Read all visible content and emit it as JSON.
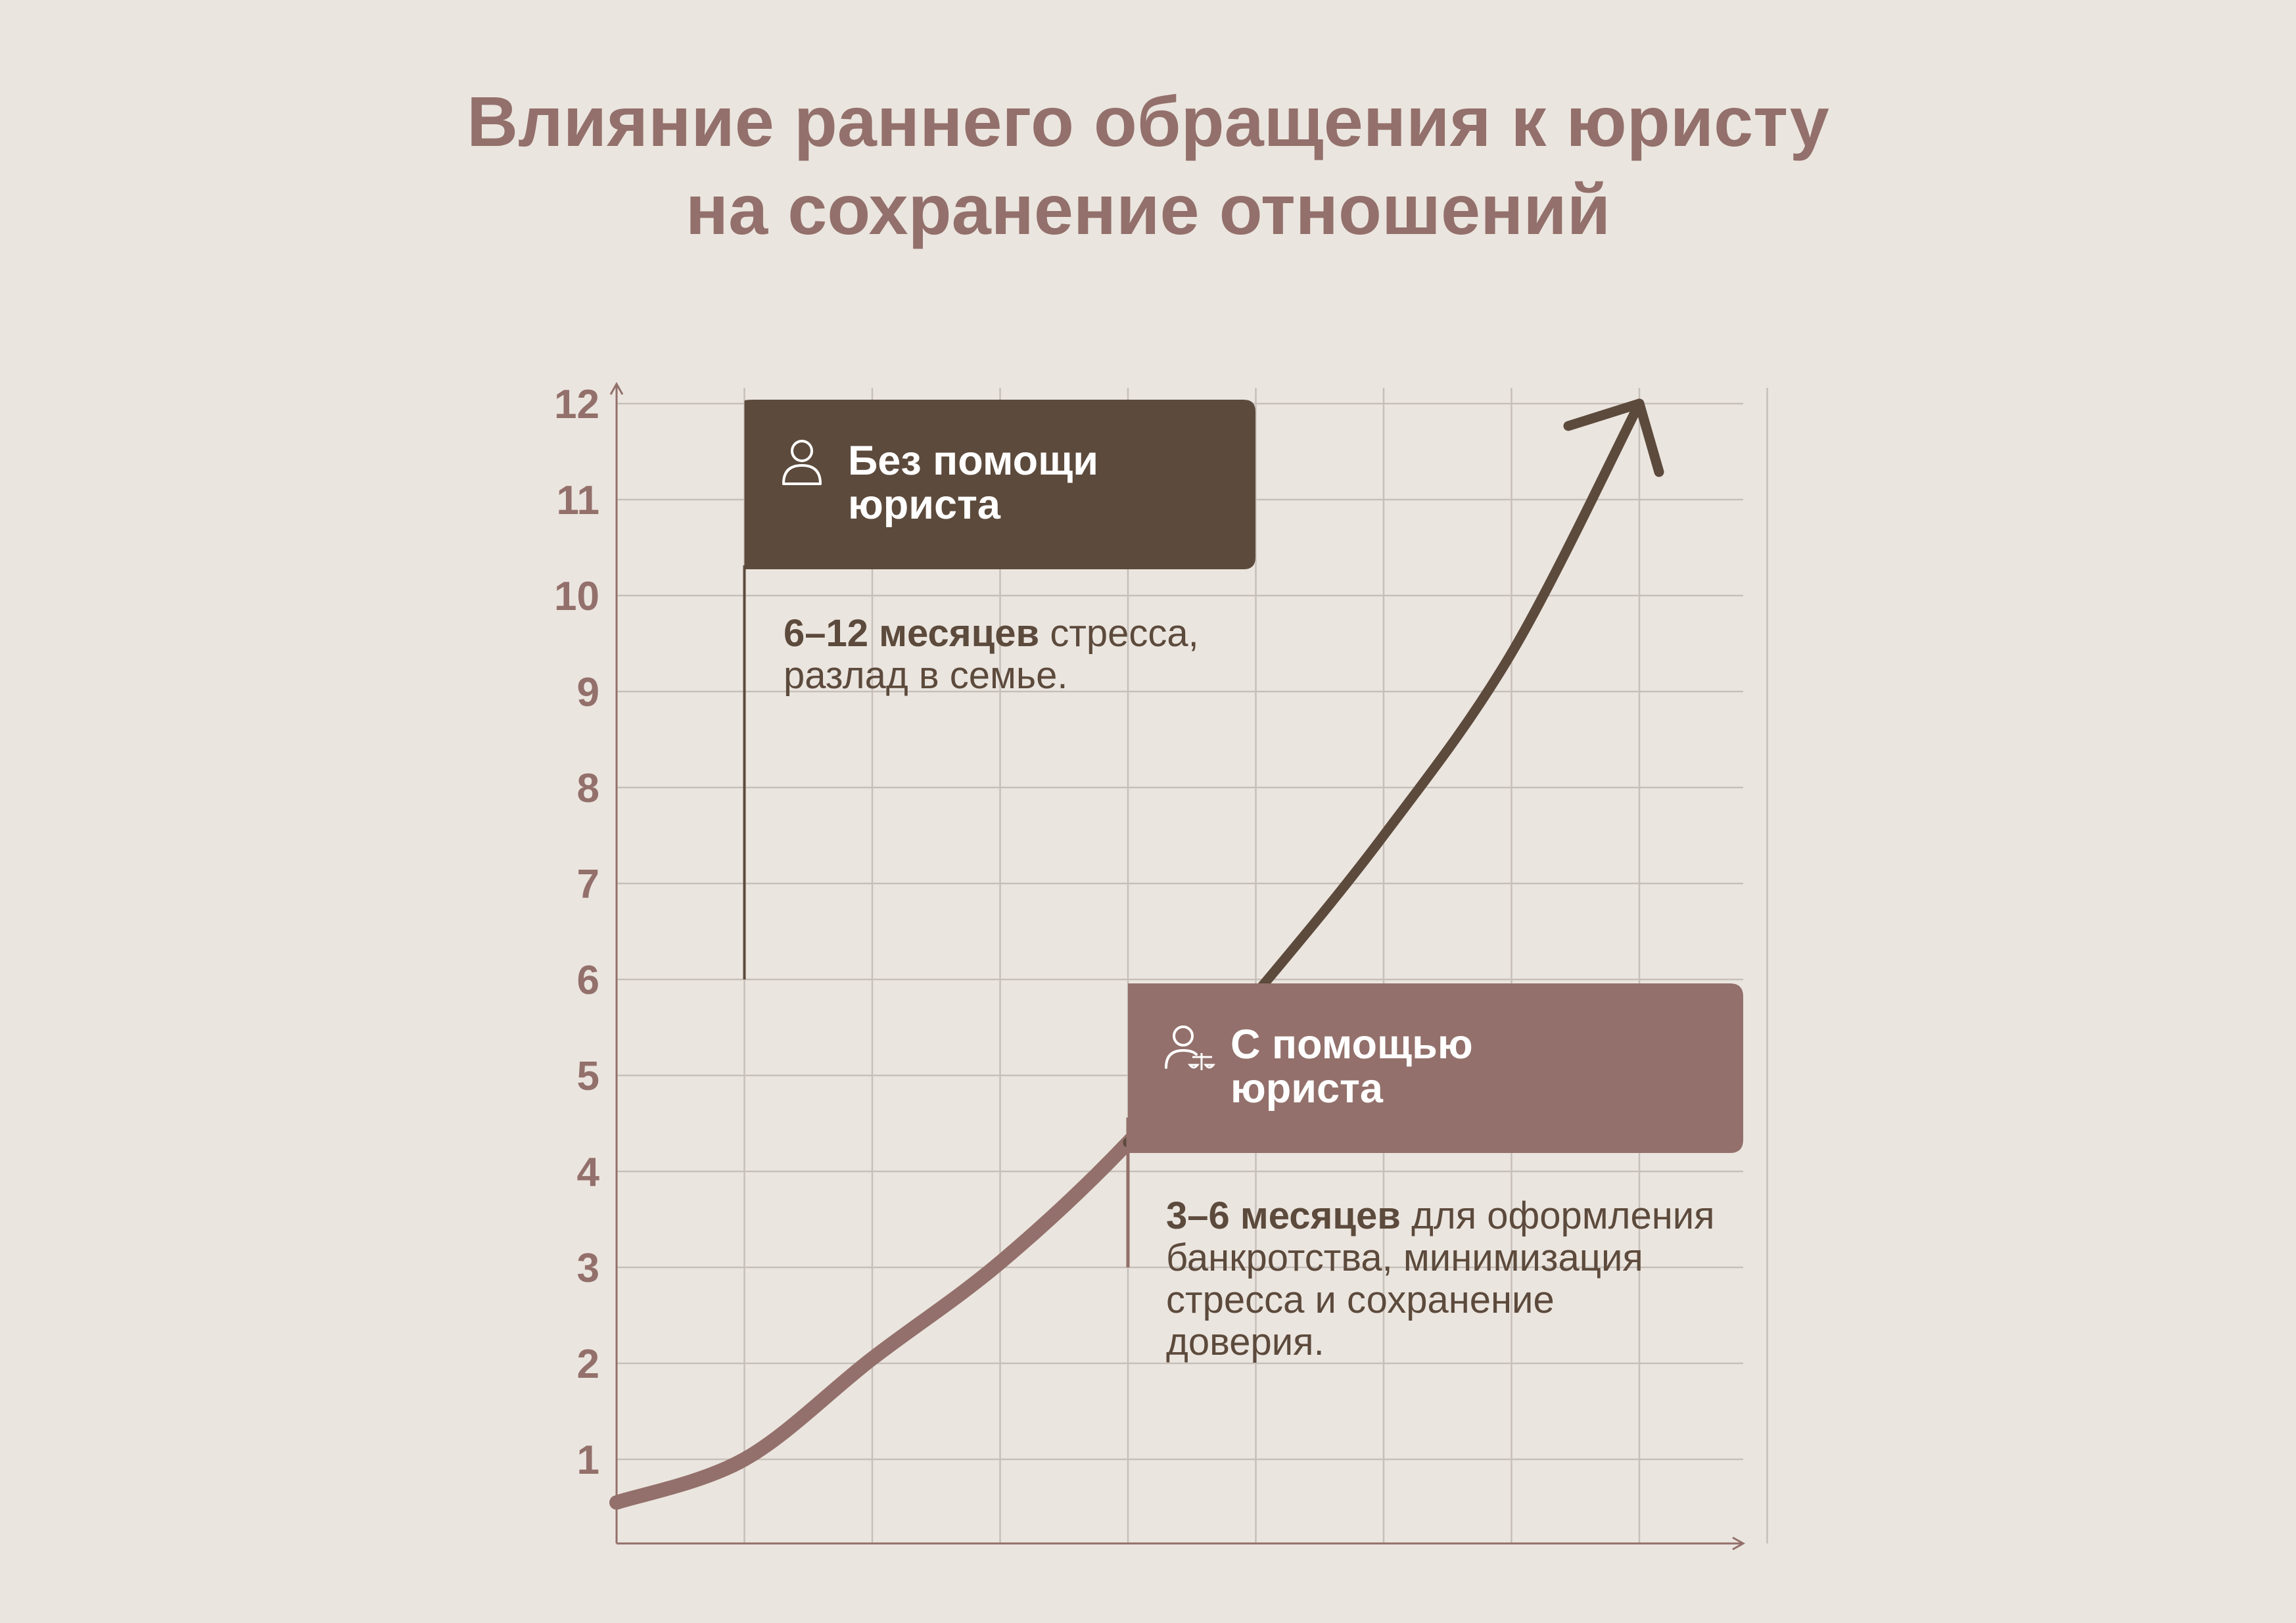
{
  "title": {
    "line1": "Влияние раннего обращения к юристу",
    "line2": "на сохранение отношений"
  },
  "colors": {
    "background": "#ebe5df",
    "title": "#93706b",
    "dark_brown": "#5c4a3c",
    "mauve": "#93706b",
    "grid": "#c7bfba",
    "axis": "#93706b"
  },
  "chart_data": {
    "type": "line",
    "title": "Влияние раннего обращения к юристу на сохранение отношений",
    "xlabel": "",
    "ylabel": "",
    "ylim": [
      0.2,
      12
    ],
    "xlim": [
      0,
      9
    ],
    "yticks": [
      1,
      2,
      3,
      4,
      5,
      6,
      7,
      8,
      9,
      10,
      11,
      12
    ],
    "grid": true,
    "series": [
      {
        "color": "#93706b",
        "x": [
          0,
          1,
          2,
          3,
          4
        ],
        "y": [
          0.55,
          1.0,
          2.05,
          3.05,
          4.3
        ]
      },
      {
        "color": "#5c4a3c",
        "x": [
          5,
          6,
          7,
          8
        ],
        "y": [
          5.85,
          7.5,
          9.4,
          12.0
        ]
      }
    ],
    "annotations": [
      {
        "icon": "person-icon",
        "label_line1": "Без помощи",
        "label_line2": "юриста",
        "text_bold": "6–12 месяцев",
        "text_rest": " стресса,",
        "text_line2": "разлад в семье.",
        "x": 1,
        "y_low": 6,
        "y_high": 12
      },
      {
        "icon": "lawyer-scales-icon",
        "label_line1": "С помощью",
        "label_line2": "юриста",
        "text_bold": "3–6 месяцев",
        "text_rest": " для оформления",
        "text_line2": "банкротства, минимизация",
        "text_line3": "стресса и сохранение",
        "text_line4": "доверия.",
        "x": 4,
        "y_low": 3,
        "y_high": 5.9
      }
    ]
  }
}
